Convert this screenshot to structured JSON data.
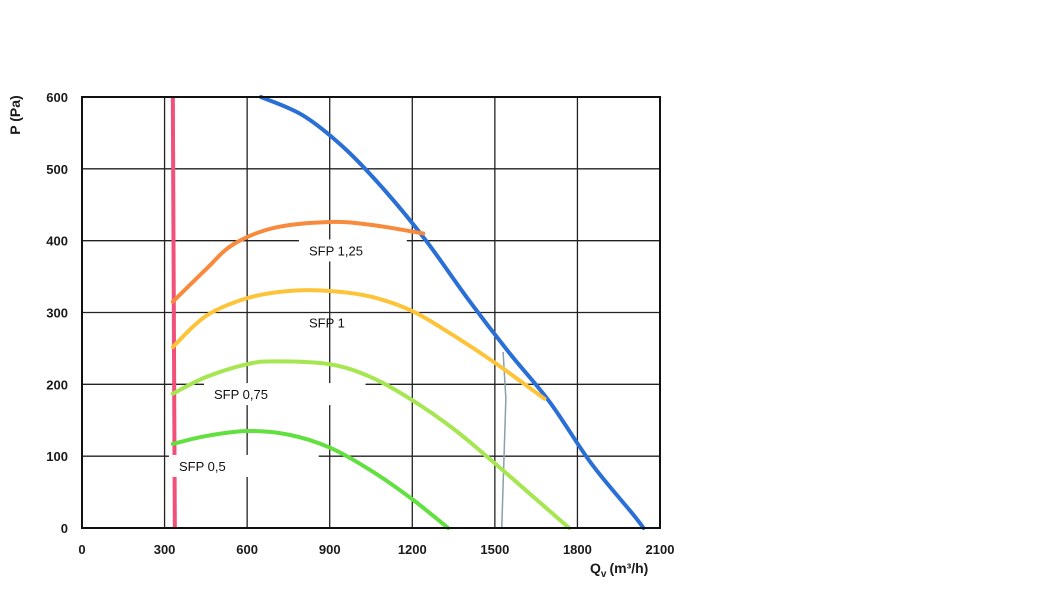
{
  "chart_data": {
    "type": "line",
    "title": "",
    "xlabel": "Q",
    "xlabel_sub": "v",
    "xlabel_unit": "(m³/h)",
    "ylabel": "P (Pa)",
    "xlim": [
      0,
      2100
    ],
    "ylim": [
      0,
      600
    ],
    "x_ticks": [
      "0",
      "300",
      "600",
      "900",
      "1200",
      "1500",
      "1800",
      "2100"
    ],
    "y_ticks": [
      "0",
      "100",
      "200",
      "300",
      "400",
      "500",
      "600"
    ],
    "grid": true,
    "reference_lines": [
      {
        "name": "min-flow",
        "x": 330,
        "color": "#f0507a"
      },
      {
        "name": "max-flow",
        "x": 1520,
        "color": "#8aa0ac"
      }
    ],
    "series": [
      {
        "name": "fan-curve",
        "color": "#2a6fd6",
        "x": [
          650,
          800,
          950,
          1100,
          1250,
          1400,
          1550,
          1700,
          1850,
          2000,
          2040
        ],
        "y": [
          600,
          575,
          530,
          470,
          400,
          320,
          245,
          175,
          90,
          20,
          0
        ]
      },
      {
        "name": "SFP 1,25",
        "label": "SFP 1,25",
        "color": "#f78a3c",
        "x": [
          330,
          450,
          550,
          700,
          900,
          1050,
          1240
        ],
        "y": [
          315,
          360,
          395,
          418,
          426,
          422,
          410
        ]
      },
      {
        "name": "SFP 1",
        "label": "SFP 1",
        "color": "#fdc43a",
        "x": [
          330,
          450,
          600,
          750,
          900,
          1050,
          1200,
          1350,
          1500,
          1680
        ],
        "y": [
          252,
          295,
          320,
          330,
          330,
          322,
          302,
          268,
          230,
          180
        ]
      },
      {
        "name": "SFP 0,75",
        "label": "SFP 0,75",
        "color": "#a6e650",
        "x": [
          330,
          450,
          600,
          700,
          900,
          1050,
          1200,
          1350,
          1500,
          1650,
          1770
        ],
        "y": [
          187,
          210,
          228,
          232,
          228,
          210,
          178,
          138,
          90,
          40,
          0
        ]
      },
      {
        "name": "SFP 0,5",
        "label": "SFP 0,5",
        "color": "#62e040",
        "x": [
          330,
          450,
          600,
          750,
          900,
          1050,
          1200,
          1330
        ],
        "y": [
          117,
          128,
          135,
          130,
          112,
          80,
          40,
          0
        ]
      }
    ]
  }
}
